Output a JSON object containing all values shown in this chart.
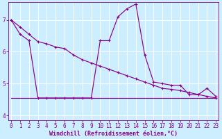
{
  "xlabel": "Windchill (Refroidissement éolien,°C)",
  "bg_color": "#cceeff",
  "line_color": "#880088",
  "grid_color": "#ffffff",
  "x_hours": [
    0,
    1,
    2,
    3,
    4,
    5,
    6,
    7,
    8,
    9,
    10,
    11,
    12,
    13,
    14,
    15,
    16,
    17,
    18,
    19,
    20,
    21,
    22,
    23
  ],
  "line1_y": [
    7.0,
    6.55,
    6.35,
    4.55,
    4.55,
    4.55,
    4.55,
    4.55,
    4.55,
    4.55,
    6.35,
    6.35,
    7.1,
    7.35,
    7.5,
    5.9,
    5.05,
    5.0,
    4.95,
    4.95,
    4.65,
    4.65,
    4.85,
    4.6
  ],
  "line2_y": [
    7.0,
    6.78,
    6.55,
    6.32,
    6.25,
    6.15,
    6.1,
    5.9,
    5.75,
    5.65,
    5.55,
    5.45,
    5.35,
    5.25,
    5.15,
    5.05,
    4.95,
    4.85,
    4.82,
    4.78,
    4.72,
    4.66,
    4.6,
    4.55
  ],
  "line3_y": [
    4.55,
    4.55,
    4.55,
    4.55,
    4.55,
    4.55,
    4.55,
    4.55,
    4.55,
    4.55,
    4.55,
    4.55,
    4.55,
    4.55,
    4.55,
    4.55,
    4.55,
    4.55,
    4.55,
    4.55,
    4.55,
    4.55,
    4.55,
    4.55
  ],
  "ylim": [
    3.85,
    7.55
  ],
  "xlim": [
    -0.3,
    23.3
  ],
  "yticks": [
    4,
    5,
    6,
    7
  ],
  "xticks": [
    0,
    1,
    2,
    3,
    4,
    5,
    6,
    7,
    8,
    9,
    10,
    11,
    12,
    13,
    14,
    15,
    16,
    17,
    18,
    19,
    20,
    21,
    22,
    23
  ],
  "tick_fontsize": 5.5,
  "xlabel_fontsize": 6.0
}
